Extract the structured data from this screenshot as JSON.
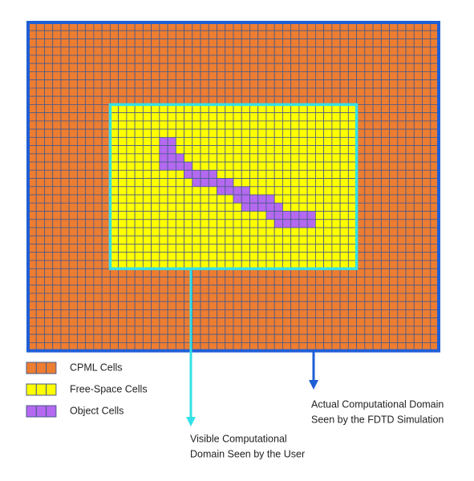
{
  "legend": [
    {
      "label": "CPML Cells"
    },
    {
      "label": "Free-Space Cells"
    },
    {
      "label": "Object Cells"
    }
  ],
  "annotations": {
    "visible": [
      "Visible Computational",
      "Domain Seen by the User"
    ],
    "actual": [
      "Actual Computational Domain",
      "Seen by the FDTD Simulation"
    ]
  }
}
